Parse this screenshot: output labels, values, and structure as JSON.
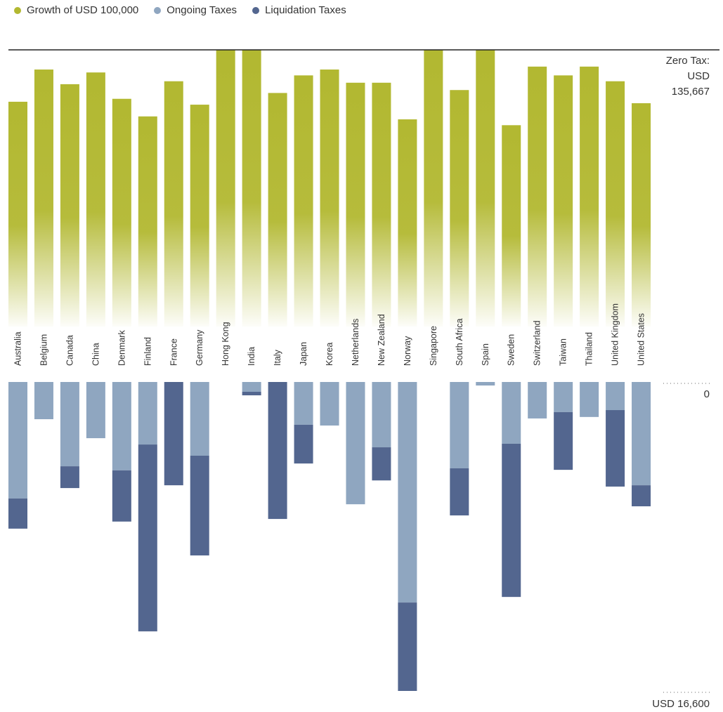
{
  "legend": {
    "growth": "Growth of USD 100,000",
    "ongoing": "Ongoing Taxes",
    "liquidation": "Liquidation Taxes"
  },
  "colors": {
    "growth": "#b2b831",
    "ongoing": "#8fa6c0",
    "liquidation": "#53668f",
    "zero_line": "#222222",
    "dots": "#666666"
  },
  "annotations": {
    "zero_tax_line1": "Zero Tax:",
    "zero_tax_line2": "USD",
    "zero_tax_line3": "135,667",
    "scale_zero": "0",
    "scale_max": "USD 16,600"
  },
  "chart_data": {
    "type": "bar",
    "title": "",
    "categories": [
      "Australia",
      "Belgium",
      "Canada",
      "China",
      "Denmark",
      "Finland",
      "France",
      "Germany",
      "Hong Kong",
      "India",
      "Italy",
      "Japan",
      "Korea",
      "Netherlands",
      "New Zealand",
      "Norway",
      "Singapore",
      "South Africa",
      "Spain",
      "Sweden",
      "Switzerland",
      "Taiwan",
      "Thailand",
      "United Kingdom",
      "United States"
    ],
    "zero_tax_value": 135667,
    "tax_axis_range": [
      0,
      16600
    ],
    "series": [
      {
        "name": "Growth of USD 100,000",
        "values": [
          128977,
          133131,
          131241,
          132753,
          129355,
          127087,
          131619,
          128600,
          135667,
          135667,
          130108,
          132375,
          133131,
          131430,
          131430,
          126709,
          135667,
          130486,
          135667,
          125953,
          133508,
          132375,
          133508,
          131619,
          128789
        ]
      },
      {
        "name": "Ongoing Taxes",
        "values": [
          6260,
          2000,
          4530,
          3020,
          4750,
          3360,
          0,
          3960,
          0,
          528,
          0,
          2300,
          2340,
          6570,
          3510,
          11850,
          0,
          4640,
          189,
          3320,
          1960,
          1620,
          1880,
          1510,
          5550
        ]
      },
      {
        "name": "Liquidation Taxes",
        "values": [
          1620,
          0,
          1170,
          0,
          2750,
          10040,
          5550,
          5360,
          0,
          189,
          7360,
          2080,
          0,
          0,
          1780,
          4750,
          0,
          2530,
          0,
          8230,
          0,
          3100,
          0,
          4110,
          1130
        ]
      }
    ]
  }
}
